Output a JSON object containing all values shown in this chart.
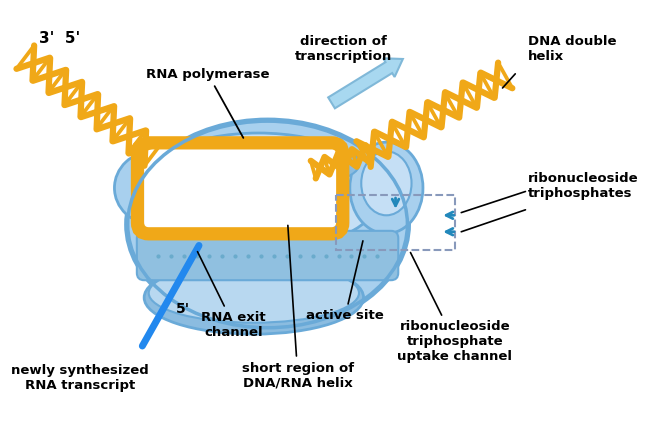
{
  "bg_color": "#ffffff",
  "body_color": "#a8d0ee",
  "body_edge_color": "#6aaad8",
  "body_light": "#c5dff5",
  "body_dark": "#8bbce0",
  "dna_color": "#f0a818",
  "dna_lw": 4.5,
  "rna_exit_color": "#2288ee",
  "arrow_color": "#a8d8f0",
  "arrow_edge": "#80b8d8",
  "dashed_color": "#8899bb",
  "blue_arrow_color": "#3399cc",
  "labels": {
    "three_prime": "3'  5'",
    "rna_polymerase": "RNA polymerase",
    "direction": "direction of\ntranscription",
    "dna_double_helix": "DNA double\nhelix",
    "ribonucleoside_tri": "ribonucleoside\ntriphosphates",
    "five_prime_bottom": "5'",
    "rna_exit": "RNA exit\nchannel",
    "active_site": "active site",
    "short_region": "short region of\nDNA/RNA helix",
    "ribonucleoside_uptake": "ribonucleoside\ntriphosphate\nuptake channel",
    "newly_synthesized": "newly synthesized\nRNA transcript"
  },
  "figsize": [
    6.5,
    4.37
  ],
  "dpi": 100
}
